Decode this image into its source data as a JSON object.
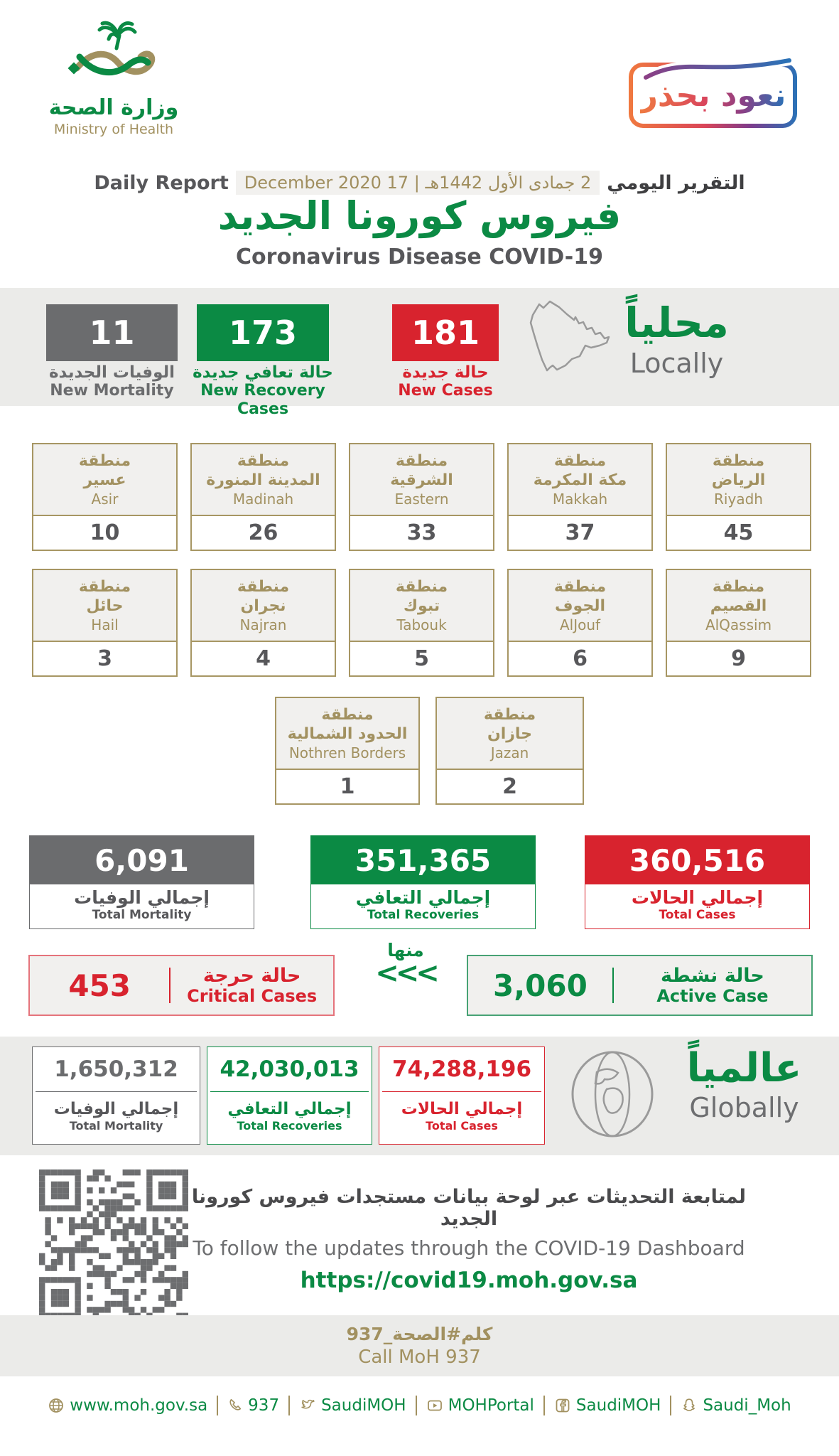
{
  "logo": {
    "title_ar": "وزارة الصحة",
    "title_en": "Ministry of Health"
  },
  "badge": {
    "text": "نعود بحذر"
  },
  "report": {
    "label_en": "Daily Report",
    "date": "2 جمادى الأول 1442هـ | 17 December 2020",
    "label_ar": "التقرير اليومي",
    "title_ar": "فيروس كورونا الجديد",
    "title_en": "Coronavirus Disease COVID-19"
  },
  "local": {
    "title_ar": "محلياً",
    "title_en": "Locally",
    "new_mortality": {
      "value": "11",
      "label_ar": "الوفيات الجديدة",
      "label_en": "New Mortality"
    },
    "new_recoveries": {
      "value": "173",
      "label_ar": "حالة تعافي جديدة",
      "label_en": "New Recovery Cases"
    },
    "new_cases": {
      "value": "181",
      "label_ar": "حالة جديدة",
      "label_en": "New Cases"
    }
  },
  "regions": {
    "prefix_ar": "منطقة",
    "items": [
      {
        "name_ar": "عسير",
        "name_en": "Asir",
        "value": "10"
      },
      {
        "name_ar": "المدينة المنورة",
        "name_en": "Madinah",
        "value": "26"
      },
      {
        "name_ar": "الشرقية",
        "name_en": "Eastern",
        "value": "33"
      },
      {
        "name_ar": "مكة المكرمة",
        "name_en": "Makkah",
        "value": "37"
      },
      {
        "name_ar": "الرياض",
        "name_en": "Riyadh",
        "value": "45"
      },
      {
        "name_ar": "حائل",
        "name_en": "Hail",
        "value": "3"
      },
      {
        "name_ar": "نجران",
        "name_en": "Najran",
        "value": "4"
      },
      {
        "name_ar": "تبوك",
        "name_en": "Tabouk",
        "value": "5"
      },
      {
        "name_ar": "الجوف",
        "name_en": "AlJouf",
        "value": "6"
      },
      {
        "name_ar": "القصيم",
        "name_en": "AlQassim",
        "value": "9"
      },
      {
        "name_ar": "الحدود الشمالية",
        "name_en": "Nothren Borders",
        "value": "1"
      },
      {
        "name_ar": "جازان",
        "name_en": "Jazan",
        "value": "2"
      }
    ]
  },
  "totals": {
    "mortality": {
      "value": "6,091",
      "label_ar": "إجمالي الوفيات",
      "label_en": "Total Mortality"
    },
    "recoveries": {
      "value": "351,365",
      "label_ar": "إجمالي التعافي",
      "label_en": "Total Recoveries"
    },
    "cases": {
      "value": "360,516",
      "label_ar": "إجمالي الحالات",
      "label_en": "Total Cases"
    }
  },
  "status": {
    "critical": {
      "value": "453",
      "label_ar": "حالة حرجة",
      "label_en": "Critical Cases"
    },
    "of_which_ar": "منها",
    "chevrons": "<<<",
    "active": {
      "value": "3,060",
      "label_ar": "حالة نشطة",
      "label_en": "Active Case"
    }
  },
  "global": {
    "title_ar": "عالمياً",
    "title_en": "Globally",
    "mortality": {
      "value": "1,650,312",
      "label_ar": "إجمالي الوفيات",
      "label_en": "Total Mortality"
    },
    "recoveries": {
      "value": "42,030,013",
      "label_ar": "إجمالي التعافي",
      "label_en": "Total Recoveries"
    },
    "cases": {
      "value": "74,288,196",
      "label_ar": "إجمالي الحالات",
      "label_en": "Total Cases"
    }
  },
  "dashboard": {
    "note_ar": "لمتابعة التحديثات عبر لوحة بيانات مستجدات فيروس كورونا الجديد",
    "note_en": "To follow the updates through the COVID-19 Dashboard",
    "url": "https://covid19.moh.gov.sa"
  },
  "call": {
    "ar": "كلم#الصحة_937",
    "en": "Call MoH 937"
  },
  "footer": {
    "items": [
      {
        "icon": "globe",
        "label": "www.moh.gov.sa"
      },
      {
        "icon": "phone",
        "label": "937"
      },
      {
        "icon": "twitter",
        "label": "SaudiMOH"
      },
      {
        "icon": "youtube",
        "label": "MOHPortal"
      },
      {
        "icon": "facebook",
        "label": "SaudiMOH"
      },
      {
        "icon": "snapchat",
        "label": "Saudi_Moh"
      }
    ]
  },
  "colors": {
    "green": "#0b8a44",
    "red": "#d8232e",
    "gray": "#6b6c6e",
    "gold": "#a29160"
  }
}
